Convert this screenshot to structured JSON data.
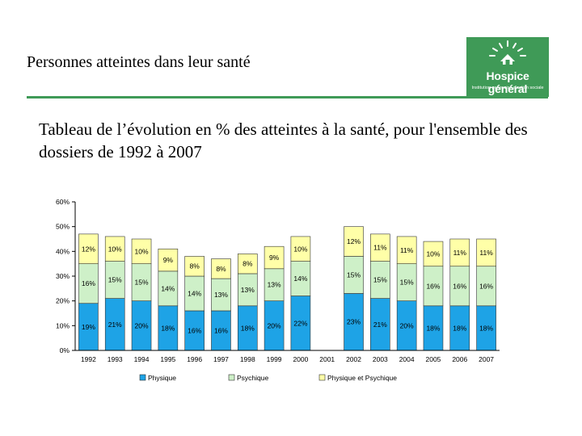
{
  "page": {
    "title": "Personnes atteintes dans leur santé",
    "subtitle": "Tableau de l’évolution en % des atteintes à la santé, pour l'ensemble des dossiers de 1992 à 2007"
  },
  "logo": {
    "name": "Hospice général",
    "tagline": "Institution genevoise d'action sociale"
  },
  "colors": {
    "accent": "#3f9a57",
    "physique": "#1ea3e6",
    "psychique": "#cef0c8",
    "physique_psychique": "#ffffa8"
  },
  "chart_data": {
    "type": "bar",
    "stacked": true,
    "categories": [
      "1992",
      "1993",
      "1994",
      "1995",
      "1996",
      "1997",
      "1998",
      "1999",
      "2000",
      "2001",
      "2002",
      "2003",
      "2004",
      "2005",
      "2006",
      "2007"
    ],
    "series": [
      {
        "name": "Physique",
        "color": "#1ea3e6",
        "values": [
          19,
          21,
          20,
          18,
          16,
          16,
          18,
          20,
          22,
          null,
          23,
          21,
          20,
          18,
          18,
          18
        ]
      },
      {
        "name": "Psychique",
        "color": "#cef0c8",
        "values": [
          16,
          15,
          15,
          14,
          14,
          13,
          13,
          13,
          14,
          null,
          15,
          15,
          15,
          16,
          16,
          16
        ]
      },
      {
        "name": "Physique et Psychique",
        "color": "#ffffa8",
        "values": [
          12,
          10,
          10,
          9,
          8,
          8,
          8,
          9,
          10,
          null,
          12,
          11,
          11,
          10,
          11,
          11
        ]
      }
    ],
    "labels": [
      [
        "19%",
        "21%",
        "20%",
        "18%",
        "16%",
        "16%",
        "18%",
        "20%",
        "22%",
        "",
        "23%",
        "21%",
        "20%",
        "18%",
        "18%",
        "18%"
      ],
      [
        "16%",
        "15%",
        "15%",
        "14%",
        "14%",
        "13%",
        "13%",
        "13%",
        "14%",
        "",
        "15%",
        "15%",
        "15%",
        "16%",
        "16%",
        "16%"
      ],
      [
        "12%",
        "10%",
        "10%",
        "9%",
        "8%",
        "8%",
        "8%",
        "9%",
        "10%",
        "",
        "12%",
        "11%",
        "11%",
        "10%",
        "11%",
        "11%"
      ]
    ],
    "ylim": [
      0,
      60
    ],
    "yticks": [
      "0%",
      "10%",
      "20%",
      "30%",
      "40%",
      "50%",
      "60%"
    ],
    "grid": false,
    "legend_position": "bottom"
  }
}
